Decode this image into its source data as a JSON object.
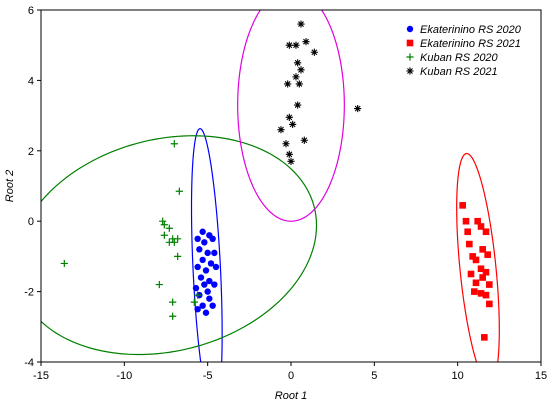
{
  "chart_data": {
    "type": "scatter",
    "xlabel": "Root 1",
    "ylabel": "Root 2",
    "xlim": [
      -15,
      15
    ],
    "ylim": [
      -4,
      6
    ],
    "xticks": [
      -15,
      -10,
      -5,
      0,
      5,
      10,
      15
    ],
    "yticks": [
      -4,
      -2,
      0,
      2,
      4,
      6
    ],
    "grid": false,
    "legend_position": "top-right",
    "series": [
      {
        "name": "Ekaterinino RS 2020",
        "marker": "circle",
        "color": "#0000ff",
        "points": [
          [
            -5.3,
            -0.3
          ],
          [
            -5.6,
            -0.5
          ],
          [
            -4.9,
            -0.4
          ],
          [
            -5.2,
            -0.6
          ],
          [
            -4.7,
            -0.5
          ],
          [
            -5.5,
            -0.8
          ],
          [
            -5.0,
            -0.9
          ],
          [
            -4.6,
            -0.9
          ],
          [
            -5.3,
            -1.1
          ],
          [
            -4.8,
            -1.2
          ],
          [
            -5.6,
            -1.3
          ],
          [
            -5.1,
            -1.4
          ],
          [
            -4.5,
            -1.3
          ],
          [
            -5.4,
            -1.6
          ],
          [
            -4.9,
            -1.7
          ],
          [
            -5.2,
            -1.8
          ],
          [
            -4.6,
            -1.8
          ],
          [
            -5.7,
            -1.9
          ],
          [
            -5.0,
            -2.0
          ],
          [
            -5.5,
            -2.1
          ],
          [
            -4.9,
            -2.2
          ],
          [
            -5.3,
            -2.4
          ],
          [
            -4.7,
            -2.4
          ],
          [
            -5.6,
            -2.5
          ],
          [
            -5.1,
            -2.6
          ]
        ]
      },
      {
        "name": "Ekaterinino RS 2021",
        "marker": "square",
        "color": "#ff0000",
        "points": [
          [
            10.3,
            0.45
          ],
          [
            10.5,
            0.0
          ],
          [
            11.2,
            0.0
          ],
          [
            11.4,
            -0.15
          ],
          [
            10.6,
            -0.3
          ],
          [
            11.7,
            -0.3
          ],
          [
            10.7,
            -0.65
          ],
          [
            11.5,
            -0.8
          ],
          [
            11.8,
            -0.95
          ],
          [
            10.9,
            -1.0
          ],
          [
            11.1,
            -1.1
          ],
          [
            11.4,
            -1.35
          ],
          [
            10.8,
            -1.5
          ],
          [
            11.7,
            -1.45
          ],
          [
            11.5,
            -1.6
          ],
          [
            11.1,
            -1.75
          ],
          [
            11.9,
            -1.8
          ],
          [
            11.4,
            -2.05
          ],
          [
            11.0,
            -2.0
          ],
          [
            11.7,
            -2.1
          ],
          [
            11.9,
            -2.35
          ],
          [
            11.6,
            -3.3
          ]
        ]
      },
      {
        "name": "Kuban RS 2020",
        "marker": "plus",
        "color": "#008000",
        "points": [
          [
            -7.0,
            2.2
          ],
          [
            -6.7,
            0.85
          ],
          [
            -7.7,
            0.0
          ],
          [
            -7.6,
            -0.1
          ],
          [
            -7.3,
            -0.2
          ],
          [
            -7.6,
            -0.4
          ],
          [
            -7.1,
            -0.5
          ],
          [
            -6.8,
            -0.5
          ],
          [
            -7.3,
            -0.6
          ],
          [
            -7.0,
            -0.6
          ],
          [
            -6.8,
            -1.0
          ],
          [
            -13.6,
            -1.2
          ],
          [
            -7.9,
            -1.8
          ],
          [
            -7.1,
            -2.3
          ],
          [
            -5.8,
            -2.3
          ],
          [
            -7.1,
            -2.7
          ],
          [
            -5.6,
            -2.1
          ]
        ]
      },
      {
        "name": "Kuban RS 2021",
        "marker": "asterisk",
        "color": "#000000",
        "points": [
          [
            0.6,
            5.6
          ],
          [
            -0.1,
            5.0
          ],
          [
            0.3,
            5.0
          ],
          [
            0.9,
            5.1
          ],
          [
            1.4,
            4.8
          ],
          [
            0.4,
            4.5
          ],
          [
            0.6,
            4.3
          ],
          [
            0.3,
            4.1
          ],
          [
            -0.2,
            3.9
          ],
          [
            0.5,
            3.9
          ],
          [
            4.0,
            3.2
          ],
          [
            0.4,
            3.3
          ],
          [
            -0.1,
            2.95
          ],
          [
            0.1,
            2.75
          ],
          [
            -0.6,
            2.6
          ],
          [
            0.8,
            2.3
          ],
          [
            -0.3,
            2.2
          ],
          [
            -0.1,
            1.9
          ],
          [
            0.0,
            1.7
          ]
        ]
      }
    ],
    "ellipses": [
      {
        "color": "#0000ff",
        "center": [
          -5.05,
          -1.4
        ],
        "rx": 4.05,
        "ry": 0.82,
        "angle": 96
      },
      {
        "color": "#ff0000",
        "center": [
          11.22,
          -1.35
        ],
        "rx": 3.35,
        "ry": 1.06,
        "angle": 103
      },
      {
        "color": "#008000",
        "center": [
          -7.5,
          -0.68
        ],
        "rx": 9.05,
        "ry": 3.05,
        "angle": 4
      },
      {
        "color": "#e000e0",
        "center": [
          0.0,
          3.3
        ],
        "rx": 3.3,
        "ry": 3.2,
        "angle": 90
      }
    ]
  }
}
